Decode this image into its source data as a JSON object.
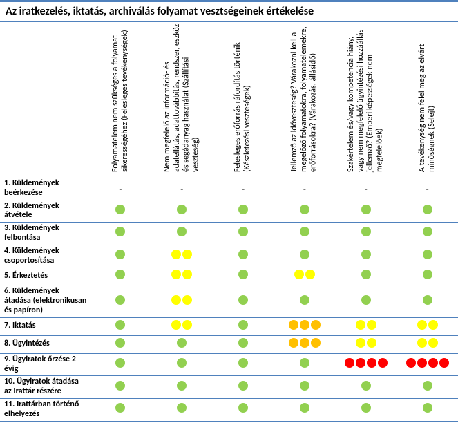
{
  "title": "Az iratkezelés, iktatás, archiválás folyamat vesztségeinek értékelése",
  "colors": {
    "green": "#92d050",
    "yellow": "#ffff00",
    "orange": "#ffc000",
    "red": "#ff0000",
    "rule": "#4f81bd"
  },
  "columns": [
    "Folyamatelem nem szükséges a folyamat sikerességéhez (Felesleges tevékenységek)",
    "Nem megfelelő az információ- és adatellátás, adattovábbítás, rendszer, eszköz és segédanyag használat (Szállítási veszteség)",
    "Felesleges erőforrás ráfordítás történik (Készletezési veszteségek)",
    "Jellemző az időveszteség? Várakozni kell a megelőző folyamatokra, folyamatelemekre, erőforrásokra? (Várakozás, állásidő)",
    "Szakértelem és/vagy kompetencia hiány, vagy nem megfelelő ügyintézési hozzáállás jellemző? (Emberi képességek nem megfelelőek)",
    "A tevékenység nem felel meg az elvárt minőségnek (Selejt)"
  ],
  "rows": [
    {
      "label": "1. Küldemények beérkezése",
      "cells": [
        {
          "type": "dash"
        },
        {
          "type": "dash"
        },
        {
          "type": "dash"
        },
        {
          "type": "dash"
        },
        {
          "type": "dash"
        },
        {
          "type": "dash"
        }
      ]
    },
    {
      "label": "2. Küldemények átvétele",
      "cells": [
        {
          "type": "dots",
          "color": "green",
          "count": 1
        },
        {
          "type": "dots",
          "color": "green",
          "count": 1
        },
        {
          "type": "dots",
          "color": "green",
          "count": 1
        },
        {
          "type": "dots",
          "color": "green",
          "count": 1
        },
        {
          "type": "dots",
          "color": "green",
          "count": 1
        },
        {
          "type": "dots",
          "color": "green",
          "count": 1
        }
      ]
    },
    {
      "label": "3. Küldemények felbontása",
      "cells": [
        {
          "type": "dots",
          "color": "green",
          "count": 1
        },
        {
          "type": "dots",
          "color": "green",
          "count": 1
        },
        {
          "type": "dots",
          "color": "green",
          "count": 1
        },
        {
          "type": "dots",
          "color": "green",
          "count": 1
        },
        {
          "type": "dots",
          "color": "green",
          "count": 1
        },
        {
          "type": "dots",
          "color": "green",
          "count": 1
        }
      ]
    },
    {
      "label": "4. Küldemények csoportosítása",
      "cells": [
        {
          "type": "dots",
          "color": "green",
          "count": 1
        },
        {
          "type": "dots",
          "color": "yellow",
          "count": 2
        },
        {
          "type": "dots",
          "color": "green",
          "count": 1
        },
        {
          "type": "dots",
          "color": "green",
          "count": 1
        },
        {
          "type": "dots",
          "color": "green",
          "count": 1
        },
        {
          "type": "dots",
          "color": "green",
          "count": 1
        }
      ]
    },
    {
      "label": "5. Érkeztetés",
      "cells": [
        {
          "type": "dots",
          "color": "green",
          "count": 1
        },
        {
          "type": "dots",
          "color": "yellow",
          "count": 2
        },
        {
          "type": "dots",
          "color": "green",
          "count": 1
        },
        {
          "type": "dots",
          "color": "yellow",
          "count": 2
        },
        {
          "type": "dots",
          "color": "green",
          "count": 1
        },
        {
          "type": "dots",
          "color": "green",
          "count": 1
        }
      ]
    },
    {
      "label": "6. Küldemények átadása (elektronikusan és papíron)",
      "cells": [
        {
          "type": "dots",
          "color": "green",
          "count": 1
        },
        {
          "type": "dots",
          "color": "yellow",
          "count": 2
        },
        {
          "type": "dots",
          "color": "green",
          "count": 1
        },
        {
          "type": "dots",
          "color": "green",
          "count": 1
        },
        {
          "type": "dots",
          "color": "green",
          "count": 1
        },
        {
          "type": "dots",
          "color": "green",
          "count": 1
        }
      ]
    },
    {
      "label": "7. Iktatás",
      "cells": [
        {
          "type": "dots",
          "color": "green",
          "count": 1
        },
        {
          "type": "dots",
          "color": "yellow",
          "count": 2
        },
        {
          "type": "dots",
          "color": "green",
          "count": 1
        },
        {
          "type": "dots",
          "color": "orange",
          "count": 3
        },
        {
          "type": "dots",
          "color": "yellow",
          "count": 2
        },
        {
          "type": "dots",
          "color": "yellow",
          "count": 2
        }
      ]
    },
    {
      "label": "8. Ügyintézés",
      "cells": [
        {
          "type": "dots",
          "color": "green",
          "count": 1
        },
        {
          "type": "dots",
          "color": "green",
          "count": 1
        },
        {
          "type": "dots",
          "color": "green",
          "count": 1
        },
        {
          "type": "dots",
          "color": "orange",
          "count": 3
        },
        {
          "type": "dots",
          "color": "yellow",
          "count": 2
        },
        {
          "type": "dots",
          "color": "yellow",
          "count": 2
        }
      ]
    },
    {
      "label": "9. Ügyiratok őrzése 2 évig",
      "cells": [
        {
          "type": "dots",
          "color": "green",
          "count": 1
        },
        {
          "type": "dots",
          "color": "green",
          "count": 1
        },
        {
          "type": "dots",
          "color": "green",
          "count": 1
        },
        {
          "type": "dots",
          "color": "green",
          "count": 1
        },
        {
          "type": "dots",
          "color": "red",
          "count": 4
        },
        {
          "type": "dots",
          "color": "red",
          "count": 4
        }
      ]
    },
    {
      "label": "10. Ügyiratok átadása az Irattár részére",
      "cells": [
        {
          "type": "dots",
          "color": "green",
          "count": 1
        },
        {
          "type": "dots",
          "color": "green",
          "count": 1
        },
        {
          "type": "dots",
          "color": "green",
          "count": 1
        },
        {
          "type": "dots",
          "color": "green",
          "count": 1
        },
        {
          "type": "dots",
          "color": "green",
          "count": 1
        },
        {
          "type": "dots",
          "color": "green",
          "count": 1
        }
      ]
    },
    {
      "label": "11. Irattárban történő elhelyezés",
      "cells": [
        {
          "type": "dots",
          "color": "green",
          "count": 1
        },
        {
          "type": "dots",
          "color": "green",
          "count": 1
        },
        {
          "type": "dots",
          "color": "green",
          "count": 1
        },
        {
          "type": "dots",
          "color": "green",
          "count": 1
        },
        {
          "type": "dots",
          "color": "green",
          "count": 1
        },
        {
          "type": "dots",
          "color": "green",
          "count": 1
        }
      ]
    }
  ]
}
